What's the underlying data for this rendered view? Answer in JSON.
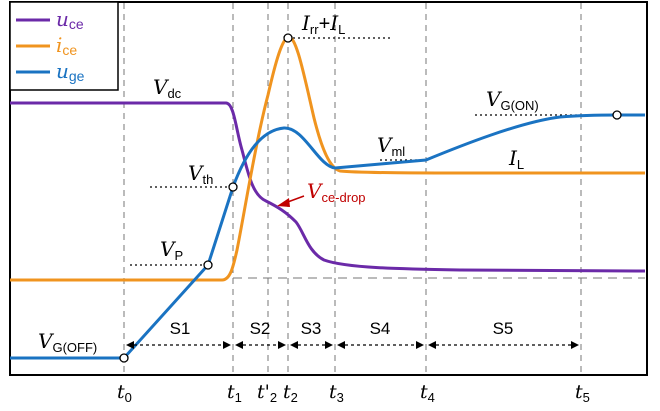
{
  "colors": {
    "uce": "#6b2aa8",
    "ice": "#f0941f",
    "uge": "#1a73c2",
    "annotation": "#c00000",
    "axis": "#000000",
    "guide": "#777777"
  },
  "legend": [
    {
      "key": "uce",
      "base": "u",
      "sub": "ce"
    },
    {
      "key": "ice",
      "base": "i",
      "sub": "ce"
    },
    {
      "key": "uge",
      "base": "u",
      "sub": "ge"
    }
  ],
  "labels": {
    "vdc": {
      "base": "V",
      "sub": "dc"
    },
    "vth": {
      "base": "V",
      "sub": "th"
    },
    "vp": {
      "base": "V",
      "sub": "P"
    },
    "vgoff": {
      "base": "V",
      "sub": "G(OFF)"
    },
    "vgon": {
      "base": "V",
      "sub": "G(ON)"
    },
    "vml": {
      "base": "V",
      "sub": "ml"
    },
    "il": {
      "base": "I",
      "sub": "L"
    },
    "peak": {
      "a_base": "I",
      "a_sub": "rr",
      "plus": "+",
      "b_base": "I",
      "b_sub": "L"
    },
    "vcedrop": {
      "base": "V",
      "sub": "ce-drop"
    }
  },
  "stages": [
    "S1",
    "S2",
    "S3",
    "S4",
    "S5"
  ],
  "time_ticks": [
    {
      "base": "t",
      "sub": "0"
    },
    {
      "base": "t",
      "sub": "1"
    },
    {
      "base": "t'",
      "sub": "2"
    },
    {
      "base": "t",
      "sub": "2"
    },
    {
      "base": "t",
      "sub": "3"
    },
    {
      "base": "t",
      "sub": "4"
    },
    {
      "base": "t",
      "sub": "5"
    }
  ]
}
